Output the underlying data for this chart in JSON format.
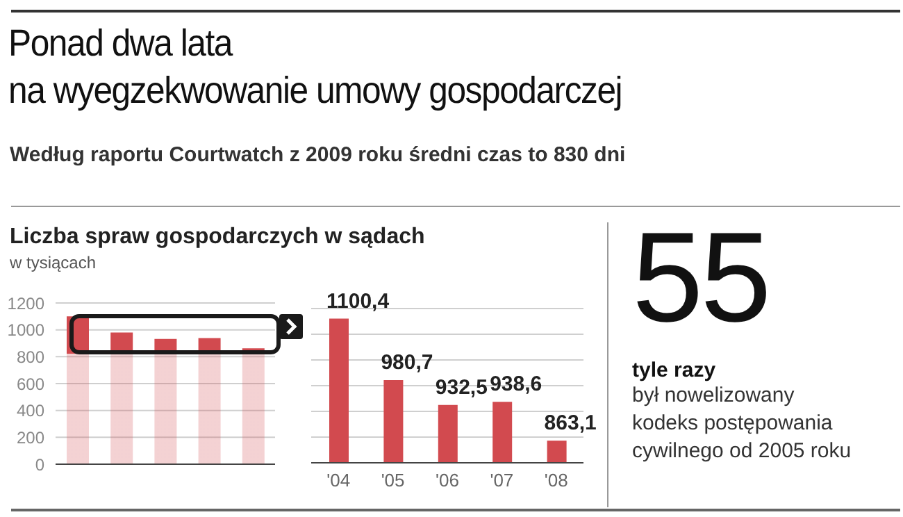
{
  "chart_data": [
    {
      "type": "bar",
      "title": "Ponad dwa lata\nna wyegzekwowanie umowy gospodarczej",
      "subtitle": "Według raportu Courtwatch z 2009 roku średni czas to 830 dni",
      "annotations": [
        "Liczba spraw gospodarczych w sądach"
      ],
      "ylabel": "w tysiącach",
      "categories": [
        null,
        null,
        null,
        null,
        null
      ],
      "values": [
        1100.4,
        980.7,
        932.5,
        938.6,
        863.1
      ],
      "color": "#d24a4f",
      "ylim": [
        0,
        1200
      ],
      "yticks": [
        0,
        200,
        400,
        600,
        800,
        1000,
        1200
      ],
      "grid": "y",
      "tick_labels": "y"
    },
    {
      "type": "bar",
      "categories": [
        "'04",
        "'05",
        "'06",
        "'07",
        "'08"
      ],
      "values": [
        1100.4,
        980.7,
        932.5,
        938.6,
        863.1
      ],
      "color": "#d24a4f",
      "value_labels": [
        "1100,4",
        "980,7",
        "932,5",
        "938,6",
        "863,1"
      ],
      "ylim": [
        820,
        1120
      ],
      "yticks": [
        {
          "value": 870,
          "label": null
        },
        {
          "value": 920,
          "label": null
        },
        {
          "value": 970,
          "label": null
        },
        {
          "value": 1020,
          "label": null
        },
        {
          "value": 1070,
          "label": null
        },
        {
          "value": 1120,
          "label": null
        }
      ],
      "grid": "y",
      "tick_labels": "x"
    },
    {
      "type": "other",
      "title": "55",
      "subtitle": "tyle razy",
      "annotations": [
        "był nowelizowany\nkodeks postępowania\ncywilnego od 2005 roku"
      ]
    }
  ]
}
